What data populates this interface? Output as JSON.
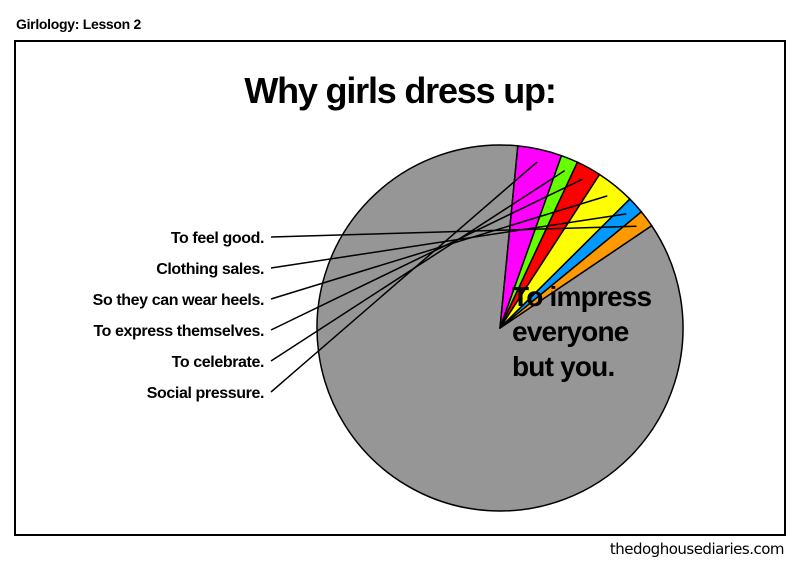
{
  "header_label": "Girlology: Lesson 2",
  "footer_credit": "thedoghousediaries.com",
  "chart_data": {
    "type": "pie",
    "title": "Why girls dress up:",
    "slices": [
      {
        "label": "To impress everyone but you.",
        "value": 86.0,
        "color": "#969696"
      },
      {
        "label": "Social pressure.",
        "value": 3.9,
        "color": "#ff00ff"
      },
      {
        "label": "To celebrate.",
        "value": 1.5,
        "color": "#66ff00"
      },
      {
        "label": "To express themselves.",
        "value": 2.2,
        "color": "#ff0000"
      },
      {
        "label": "So they can wear heels.",
        "value": 3.4,
        "color": "#ffff00"
      },
      {
        "label": "Clothing sales.",
        "value": 1.5,
        "color": "#0099ff"
      },
      {
        "label": "To feel good.",
        "value": 1.5,
        "color": "#ff9900"
      }
    ],
    "main_label_lines": [
      "To impress",
      "everyone",
      "but you."
    ],
    "legend": "none"
  }
}
